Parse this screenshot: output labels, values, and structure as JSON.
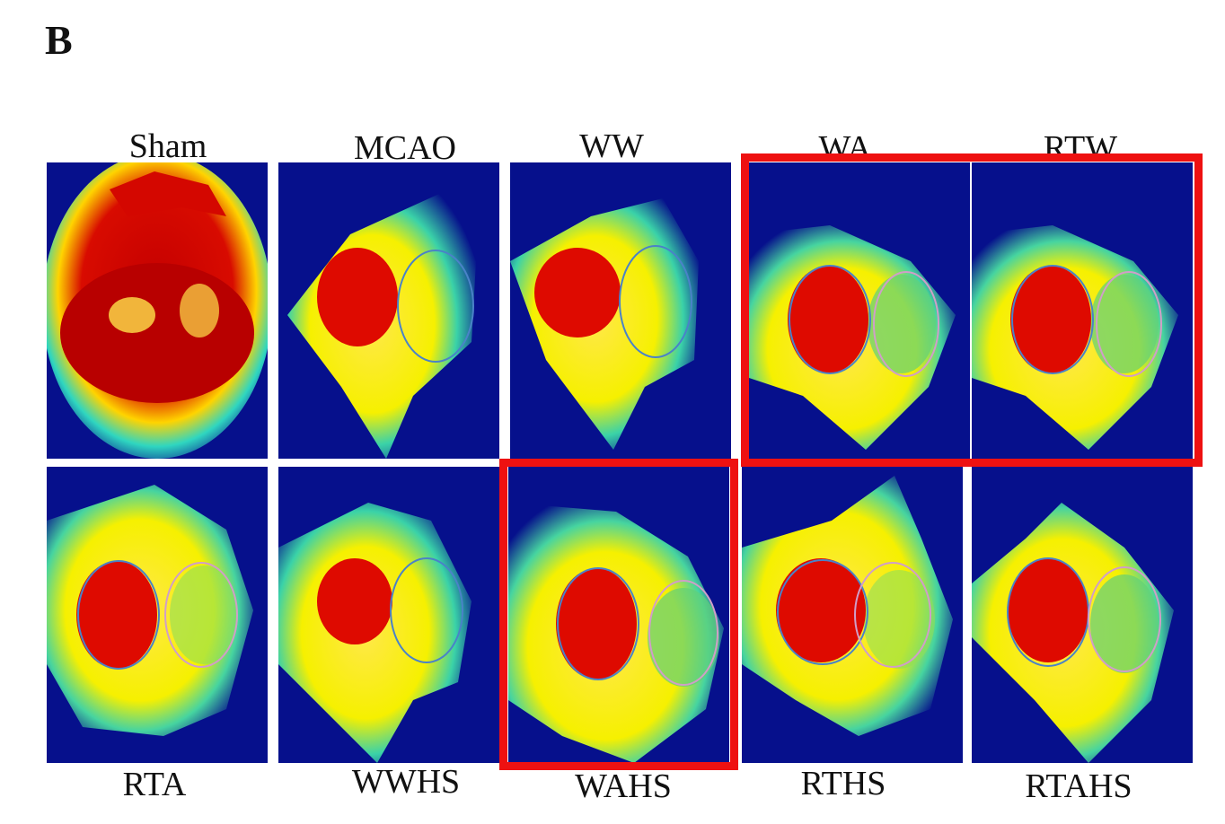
{
  "figure": {
    "panel_letter": "B",
    "colors": {
      "highlight": "#ee1111",
      "background_blue": "#06108c"
    },
    "top_row": [
      {
        "label": "Sham",
        "pattern": "sham"
      },
      {
        "label": "MCAO",
        "pattern": "small-left-core"
      },
      {
        "label": "WW",
        "pattern": "small-left-core"
      },
      {
        "label": "WA",
        "pattern": "large-left-core"
      },
      {
        "label": "RTW",
        "pattern": "large-left-core"
      }
    ],
    "bottom_row": [
      {
        "label": "RTA",
        "pattern": "large-left-core"
      },
      {
        "label": "WWHS",
        "pattern": "small-left-core"
      },
      {
        "label": "WAHS",
        "pattern": "large-left-core"
      },
      {
        "label": "RTHS",
        "pattern": "large-left-core"
      },
      {
        "label": "RTAHS",
        "pattern": "large-left-core"
      }
    ],
    "highlighted_groups": [
      "WA",
      "RTW",
      "WAHS"
    ]
  }
}
